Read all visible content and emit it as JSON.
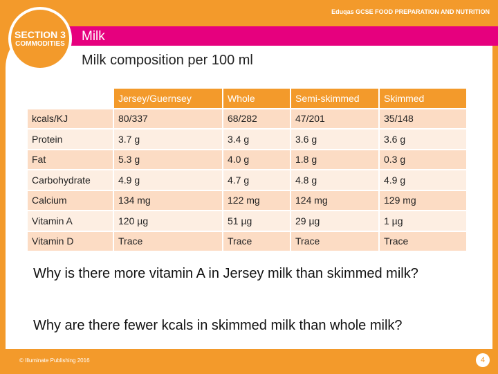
{
  "header": {
    "brand": "Eduqas GCSE",
    "course": "FOOD PREPARATION AND NUTRITION",
    "section": "SECTION 3",
    "section_name": "COMMODITIES",
    "topic": "Milk"
  },
  "title": "Milk composition per 100 ml",
  "table": {
    "columns": [
      "",
      "Jersey/Guernsey",
      "Whole",
      "Semi-skimmed",
      "Skimmed"
    ],
    "rows": [
      [
        "kcals/KJ",
        "80/337",
        "68/282",
        "47/201",
        "35/148"
      ],
      [
        "Protein",
        "3.7 g",
        "3.4 g",
        "3.6 g",
        "3.6 g"
      ],
      [
        "Fat",
        "5.3 g",
        "4.0 g",
        "1.8 g",
        "0.3 g"
      ],
      [
        "Carbohydrate",
        "4.9 g",
        "4.7 g",
        "4.8 g",
        "4.9 g"
      ],
      [
        "Calcium",
        "134 mg",
        "122 mg",
        "124 mg",
        "129 mg"
      ],
      [
        "Vitamin A",
        "120 µg",
        "51 µg",
        "29 µg",
        "1 µg"
      ],
      [
        "Vitamin D",
        "Trace",
        "Trace",
        "Trace",
        "Trace"
      ]
    ]
  },
  "questions": [
    "Why is there more vitamin A in Jersey milk than skimmed milk?",
    "Why are there fewer kcals in skimmed milk than whole milk?"
  ],
  "footer": {
    "copyright": "© Illuminate Publishing 2016",
    "page": "4"
  }
}
